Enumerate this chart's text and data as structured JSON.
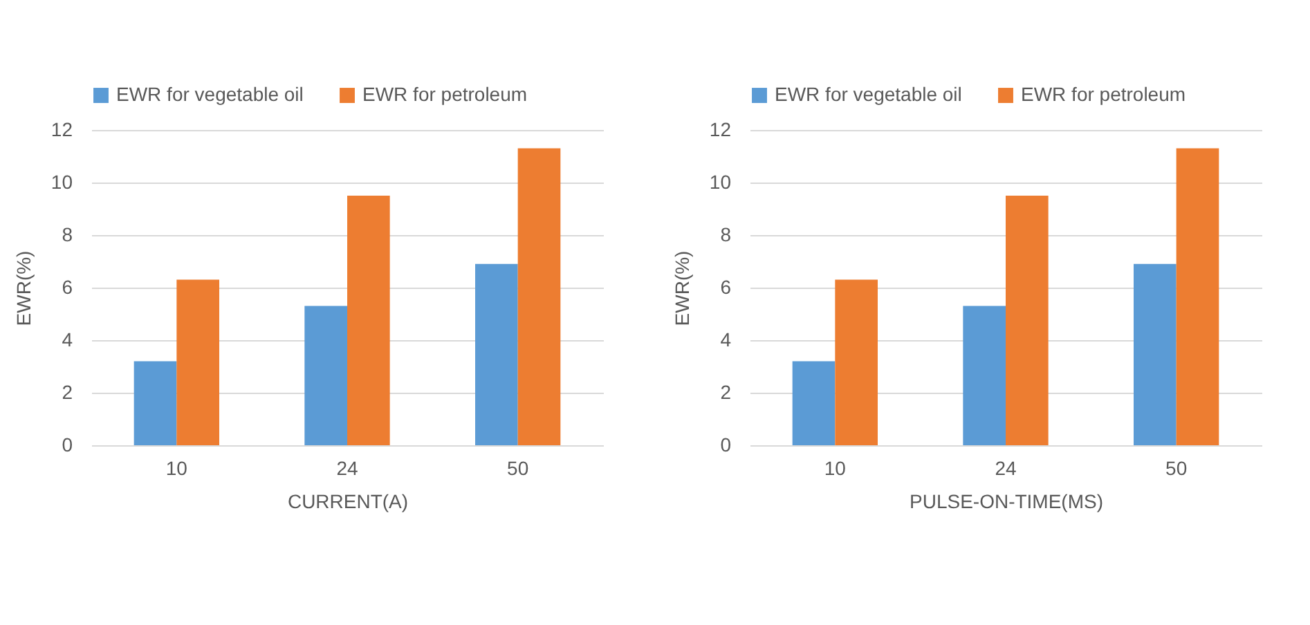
{
  "chart_data": [
    {
      "type": "bar",
      "xlabel": "CURRENT(A)",
      "ylabel": "EWR(%)",
      "categories": [
        "10",
        "24",
        "50"
      ],
      "series": [
        {
          "name": "EWR for vegetable oil",
          "color": "#5b9bd5",
          "values": [
            3.2,
            5.3,
            6.9
          ]
        },
        {
          "name": "EWR for petroleum",
          "color": "#ed7d31",
          "values": [
            6.3,
            9.5,
            11.3
          ]
        }
      ],
      "ylim": [
        0,
        12
      ],
      "yticks": [
        0,
        2,
        4,
        6,
        8,
        10,
        12
      ],
      "grid": "y",
      "legend": "top"
    },
    {
      "type": "bar",
      "xlabel": "PULSE-ON-TIME(MS)",
      "ylabel": "EWR(%)",
      "categories": [
        "10",
        "24",
        "50"
      ],
      "series": [
        {
          "name": "EWR for vegetable oil",
          "color": "#5b9bd5",
          "values": [
            3.2,
            5.3,
            6.9
          ]
        },
        {
          "name": "EWR for petroleum",
          "color": "#ed7d31",
          "values": [
            6.3,
            9.5,
            11.3
          ]
        }
      ],
      "ylim": [
        0,
        12
      ],
      "yticks": [
        0,
        2,
        4,
        6,
        8,
        10,
        12
      ],
      "grid": "y",
      "legend": "top"
    }
  ]
}
